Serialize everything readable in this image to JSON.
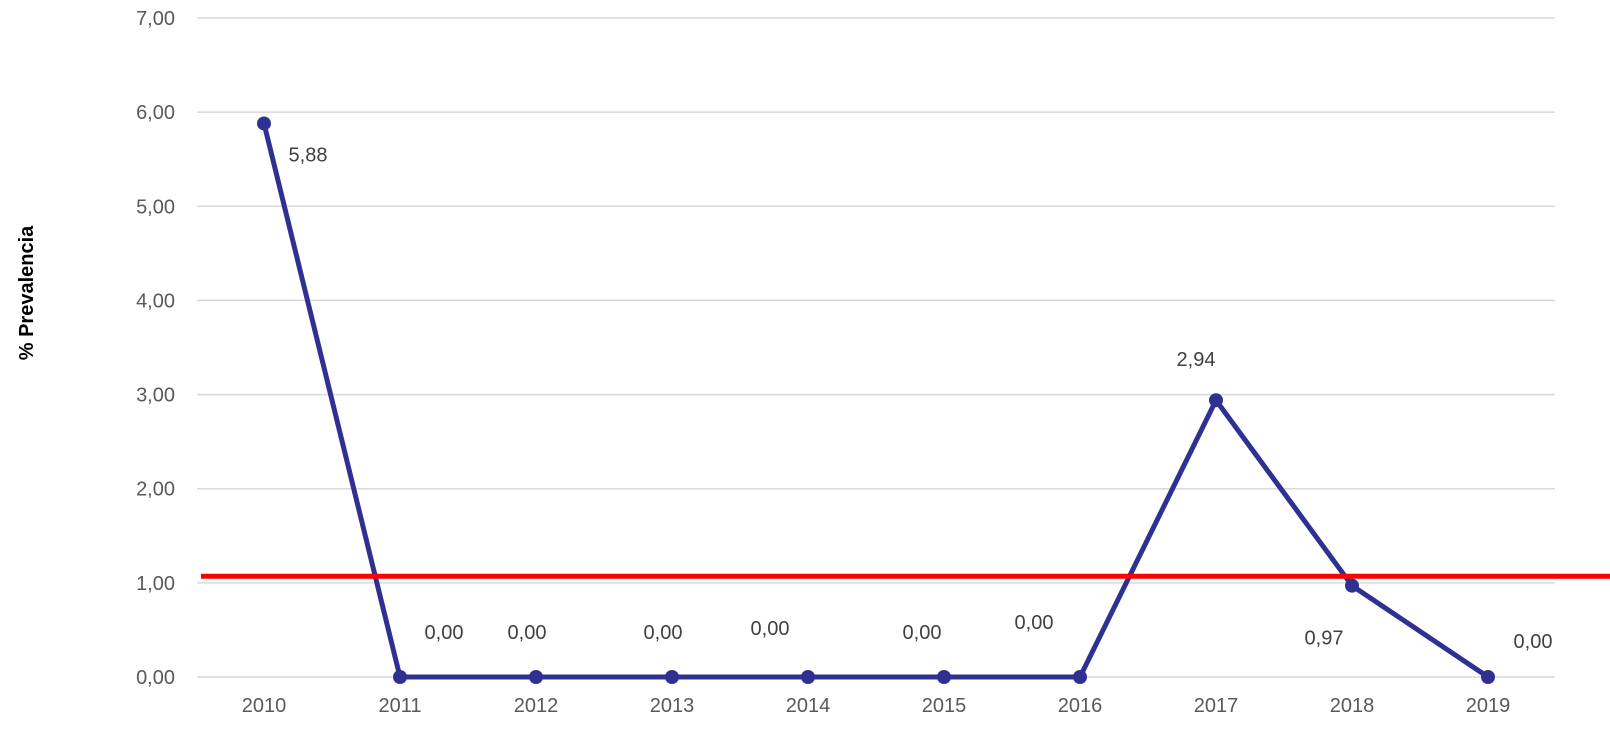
{
  "chart_data": {
    "type": "line",
    "categories": [
      "2010",
      "2011",
      "2012",
      "2013",
      "2014",
      "2015",
      "2016",
      "2017",
      "2018",
      "2019"
    ],
    "series": [
      {
        "values": [
          5.88,
          0.0,
          0.0,
          0.0,
          0.0,
          0.0,
          0.0,
          2.94,
          0.97,
          0.0
        ],
        "labels": [
          "5,88",
          "0,00",
          "0,00",
          "0,00",
          "0,00",
          "0,00",
          "0,00",
          "2,94",
          "0,97",
          "0,00"
        ],
        "color": "#2e3192"
      }
    ],
    "reference_line": {
      "value": 1.07,
      "color": "#ff0000"
    },
    "ylabel": "% Prevalencia",
    "ylim": [
      0,
      7
    ],
    "yticks": [
      "0,00",
      "1,00",
      "2,00",
      "3,00",
      "4,00",
      "5,00",
      "6,00",
      "7,00"
    ],
    "grid": true,
    "gridColor": "#d9d9d9"
  }
}
